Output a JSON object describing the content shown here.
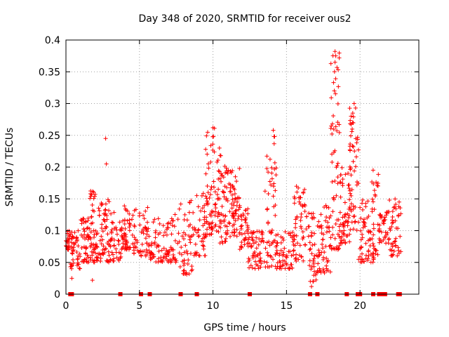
{
  "chart_data": {
    "type": "scatter",
    "title": "Day 348 of 2020, SRMTID for receiver ous2",
    "xlabel": "GPS time / hours",
    "ylabel": "SRMTID / TECUs",
    "xlim": [
      0,
      24
    ],
    "ylim": [
      0,
      0.4
    ],
    "xticks": [
      0,
      5,
      10,
      15,
      20
    ],
    "xtick_labels": [
      "0",
      "5",
      "10",
      "15",
      "20"
    ],
    "yticks": [
      0,
      0.05,
      0.1,
      0.15,
      0.2,
      0.25,
      0.3,
      0.35,
      0.4
    ],
    "ytick_labels": [
      "0",
      "0.05",
      "0.1",
      "0.15",
      "0.2",
      "0.25",
      "0.3",
      "0.35",
      "0.4"
    ],
    "grid": true,
    "marker": "+",
    "series_color": "#ff0000",
    "clusters": [
      {
        "x": [
          0.0,
          0.25
        ],
        "y": [
          0.07,
          0.1
        ],
        "n": 20
      },
      {
        "x": [
          0.3,
          1.0
        ],
        "y": [
          0.04,
          0.1
        ],
        "n": 45
      },
      {
        "x": [
          1.0,
          1.6
        ],
        "y": [
          0.05,
          0.12
        ],
        "n": 45
      },
      {
        "x": [
          1.6,
          2.2
        ],
        "y": [
          0.05,
          0.165
        ],
        "n": 55
      },
      {
        "x": [
          2.2,
          3.0
        ],
        "y": [
          0.05,
          0.15
        ],
        "n": 55
      },
      {
        "x": [
          3.0,
          3.8
        ],
        "y": [
          0.05,
          0.13
        ],
        "n": 45
      },
      {
        "x": [
          3.8,
          4.6
        ],
        "y": [
          0.07,
          0.14
        ],
        "n": 50
      },
      {
        "x": [
          4.6,
          5.6
        ],
        "y": [
          0.06,
          0.14
        ],
        "n": 50
      },
      {
        "x": [
          5.6,
          6.6
        ],
        "y": [
          0.05,
          0.12
        ],
        "n": 45
      },
      {
        "x": [
          6.6,
          7.6
        ],
        "y": [
          0.05,
          0.13
        ],
        "n": 50
      },
      {
        "x": [
          7.6,
          8.6
        ],
        "y": [
          0.03,
          0.15
        ],
        "n": 50
      },
      {
        "x": [
          8.6,
          9.5
        ],
        "y": [
          0.06,
          0.16
        ],
        "n": 45
      },
      {
        "x": [
          9.5,
          10.2
        ],
        "y": [
          0.09,
          0.26
        ],
        "n": 60
      },
      {
        "x": [
          10.2,
          11.0
        ],
        "y": [
          0.08,
          0.23
        ],
        "n": 65
      },
      {
        "x": [
          11.0,
          11.8
        ],
        "y": [
          0.09,
          0.2
        ],
        "n": 60
      },
      {
        "x": [
          11.8,
          12.4
        ],
        "y": [
          0.07,
          0.15
        ],
        "n": 40
      },
      {
        "x": [
          12.4,
          13.5
        ],
        "y": [
          0.04,
          0.1
        ],
        "n": 60
      },
      {
        "x": [
          13.5,
          14.3
        ],
        "y": [
          0.04,
          0.25
        ],
        "n": 55
      },
      {
        "x": [
          14.3,
          15.5
        ],
        "y": [
          0.04,
          0.1
        ],
        "n": 60
      },
      {
        "x": [
          15.5,
          16.5
        ],
        "y": [
          0.05,
          0.17
        ],
        "n": 55
      },
      {
        "x": [
          16.5,
          17.2
        ],
        "y": [
          0.02,
          0.13
        ],
        "n": 45
      },
      {
        "x": [
          17.2,
          18.0
        ],
        "y": [
          0.03,
          0.14
        ],
        "n": 50
      },
      {
        "x": [
          18.0,
          18.6
        ],
        "y": [
          0.07,
          0.38
        ],
        "n": 60
      },
      {
        "x": [
          18.6,
          19.3
        ],
        "y": [
          0.08,
          0.2
        ],
        "n": 55
      },
      {
        "x": [
          19.3,
          19.9
        ],
        "y": [
          0.1,
          0.3
        ],
        "n": 55
      },
      {
        "x": [
          19.9,
          20.6
        ],
        "y": [
          0.05,
          0.15
        ],
        "n": 45
      },
      {
        "x": [
          20.6,
          21.3
        ],
        "y": [
          0.05,
          0.2
        ],
        "n": 45
      },
      {
        "x": [
          21.3,
          22.0
        ],
        "y": [
          0.08,
          0.13
        ],
        "n": 35
      },
      {
        "x": [
          22.0,
          22.8
        ],
        "y": [
          0.06,
          0.15
        ],
        "n": 45
      }
    ],
    "notable_points": [
      {
        "x": 2.7,
        "y": 0.245
      },
      {
        "x": 2.75,
        "y": 0.205
      },
      {
        "x": 10.0,
        "y": 0.262
      },
      {
        "x": 10.1,
        "y": 0.261
      },
      {
        "x": 14.1,
        "y": 0.258
      },
      {
        "x": 14.15,
        "y": 0.248
      },
      {
        "x": 18.3,
        "y": 0.382
      },
      {
        "x": 18.35,
        "y": 0.375
      },
      {
        "x": 18.3,
        "y": 0.365
      },
      {
        "x": 18.2,
        "y": 0.333
      },
      {
        "x": 18.25,
        "y": 0.32
      },
      {
        "x": 19.6,
        "y": 0.3
      },
      {
        "x": 19.7,
        "y": 0.293
      },
      {
        "x": 19.5,
        "y": 0.27
      },
      {
        "x": 0.4,
        "y": 0.025
      },
      {
        "x": 1.8,
        "y": 0.022
      },
      {
        "x": 16.7,
        "y": 0.012
      },
      {
        "x": 16.8,
        "y": 0.02
      }
    ],
    "zero_markers": [
      0.3,
      0.4,
      3.7,
      5.1,
      5.7,
      7.8,
      8.9,
      12.5,
      16.6,
      17.1,
      19.1,
      19.85,
      20.0,
      20.9,
      21.3,
      21.5,
      21.7,
      22.6,
      22.7
    ]
  }
}
